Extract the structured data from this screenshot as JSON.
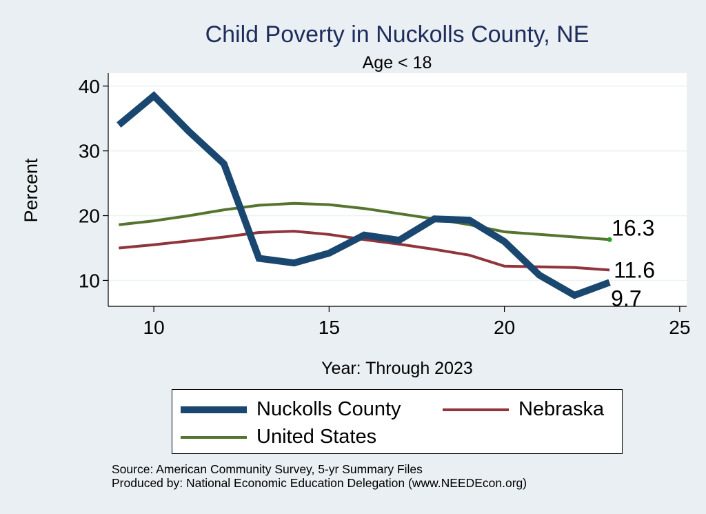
{
  "chart_data": {
    "type": "line",
    "title": "Child Poverty in Nuckolls County, NE",
    "subtitle": "Age < 18",
    "xlabel": "Year: Through 2023",
    "ylabel": "Percent",
    "xlim": [
      8.7,
      25.2
    ],
    "ylim": [
      6,
      42
    ],
    "x_ticks": [
      10,
      15,
      20,
      25
    ],
    "y_ticks": [
      10,
      20,
      30,
      40
    ],
    "grid": true,
    "legend_position": "bottom",
    "x": [
      9,
      10,
      11,
      12,
      13,
      14,
      15,
      16,
      17,
      18,
      19,
      20,
      21,
      22,
      23
    ],
    "series": [
      {
        "name": "Nuckolls County",
        "color": "#1a476f",
        "values": [
          34,
          38.5,
          33,
          28,
          13.4,
          12.7,
          14.2,
          17.0,
          16.2,
          19.5,
          19.3,
          16.0,
          10.8,
          7.7,
          9.7
        ],
        "end_label": "9.7"
      },
      {
        "name": "Nebraska",
        "color": "#90353b",
        "values": [
          15.0,
          15.5,
          16.1,
          16.7,
          17.4,
          17.6,
          17.1,
          16.3,
          15.6,
          14.8,
          13.9,
          12.2,
          12.1,
          12.0,
          11.6
        ],
        "end_label": "11.6"
      },
      {
        "name": "United States",
        "color": "#55752f",
        "values": [
          18.6,
          19.2,
          20.0,
          20.9,
          21.6,
          21.9,
          21.7,
          21.1,
          20.3,
          19.5,
          18.6,
          17.5,
          17.1,
          16.7,
          16.3
        ],
        "end_label": "16.3"
      }
    ]
  },
  "notes": {
    "source": "Source: American Community Survey, 5-yr Summary Files",
    "produced_by": "Produced by: National Economic Education Delegation (www.NEEDEcon.org)"
  }
}
